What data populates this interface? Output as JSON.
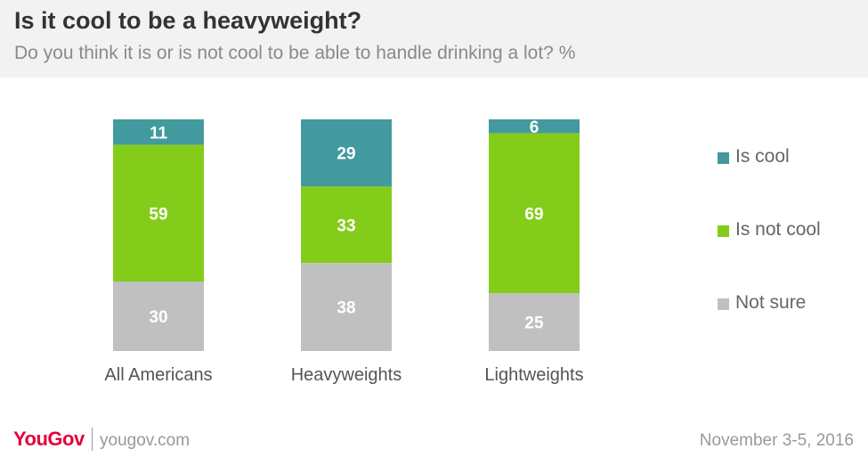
{
  "header": {
    "title": "Is it cool to be a heavyweight?",
    "subtitle": "Do you think it is or is not cool to be able to handle drinking a lot? %"
  },
  "chart_data": {
    "type": "bar",
    "stacked": true,
    "categories": [
      "All Americans",
      "Heavyweights",
      "Lightweights"
    ],
    "series": [
      {
        "name": "Is cool",
        "values": [
          11,
          29,
          6
        ],
        "color": "#429a9e"
      },
      {
        "name": "Is not cool",
        "values": [
          59,
          33,
          69
        ],
        "color": "#84cc1a"
      },
      {
        "name": "Not sure",
        "values": [
          30,
          38,
          25
        ],
        "color": "#c0c0c0"
      }
    ],
    "ylim": [
      0,
      100
    ],
    "legend_position": "right",
    "grid": false,
    "title": "",
    "xlabel": "",
    "ylabel": ""
  },
  "footer": {
    "brand": "YouGov",
    "site": "yougov.com",
    "date": "November 3-5, 2016"
  }
}
